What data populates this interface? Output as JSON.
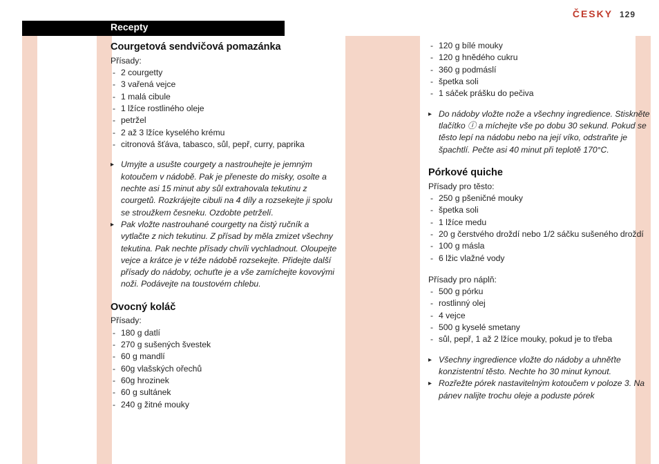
{
  "header": {
    "language": "ČESKY",
    "page_number": "129"
  },
  "section_header": "Recepty",
  "colors": {
    "accent_red": "#c03a2b",
    "stripe_peach": "#f5d6c8",
    "bar_black": "#000000",
    "text": "#222222",
    "bg": "#ffffff"
  },
  "left_column": {
    "recipe1": {
      "title": "Courgetová sendvičová pomazánka",
      "subhead": "Přísady:",
      "ingredients": [
        "2 courgetty",
        "3 vařená vejce",
        "1 malá cibule",
        "1 lžíce rostliného oleje",
        "petržel",
        "2 až 3 lžíce kyselého krému",
        "citronová šťáva, tabasco, sůl, pepř, curry, paprika"
      ],
      "instructions": [
        "Umyjte a usušte courgety a nastrouhejte je jemným kotoučem v nádobě. Pak je přeneste do misky, osolte a nechte asi 15 minut aby sůl extrahovala tekutinu z courgetů. Rozkrájejte cibuli na 4 díly a rozsekejte ji spolu se stroužkem česneku. Ozdobte petrželí.",
        "Pak vložte nastrouhané courgetty na čistý ručník a vytlačte z nich tekutinu. Z přísad by měla zmizet všechny tekutina. Pak nechte přísady chvíli vychladnout. Oloupejte vejce a krátce je v téže nádobě rozsekejte. Přidejte další přísady do nádoby, ochuťte je a vše zamíchejte kovovými noži. Podávejte na toustovém chlebu."
      ]
    },
    "recipe2": {
      "title": "Ovocný koláč",
      "subhead": "Přísady:",
      "ingredients": [
        "180 g datlí",
        "270 g sušených švestek",
        "60 g mandlí",
        "60g vlašských ořechů",
        "60g hrozinek",
        "60 g sultánek",
        "240 g žitné mouky"
      ]
    }
  },
  "right_column": {
    "cont_ingredients": [
      "120 g bílé mouky",
      "120 g hnědého cukru",
      "360 g podmáslí",
      "špetka soli",
      "1 sáček prášku do pečiva"
    ],
    "cont_instructions": [
      "Do nádoby vložte nože a všechny ingredience. Stiskněte tlačítko ⓘ a míchejte vše po dobu 30 sekund. Pokud se těsto lepí na nádobu nebo na její víko, odstraňte je špachtlí. Pečte asi 40 minut při teplotě 170°C."
    ],
    "recipe3": {
      "title": "Pórkové quiche",
      "dough_subhead": "Přísady pro těsto:",
      "dough_ingredients": [
        "250 g pšeničné mouky",
        "špetka soli",
        "1 lžíce medu",
        "20 g čerstvého droždí nebo 1/2 sáčku sušeného droždí",
        "100 g másla",
        "6 lžic vlažné vody"
      ],
      "filling_subhead": "Přísady pro náplň:",
      "filling_ingredients": [
        "500 g pórku",
        "rostlinný olej",
        "4 vejce",
        "500 g kyselé smetany",
        "sůl, pepř, 1 až 2 lžíce mouky, pokud je to třeba"
      ],
      "instructions": [
        "Všechny ingredience vložte do nádoby a uhněťte konzistentní těsto. Nechte ho 30 minut kynout.",
        "Rozřežte pórek nastavitelným kotoučem v poloze 3. Na pánev nalijte trochu oleje a poduste pórek"
      ]
    }
  }
}
